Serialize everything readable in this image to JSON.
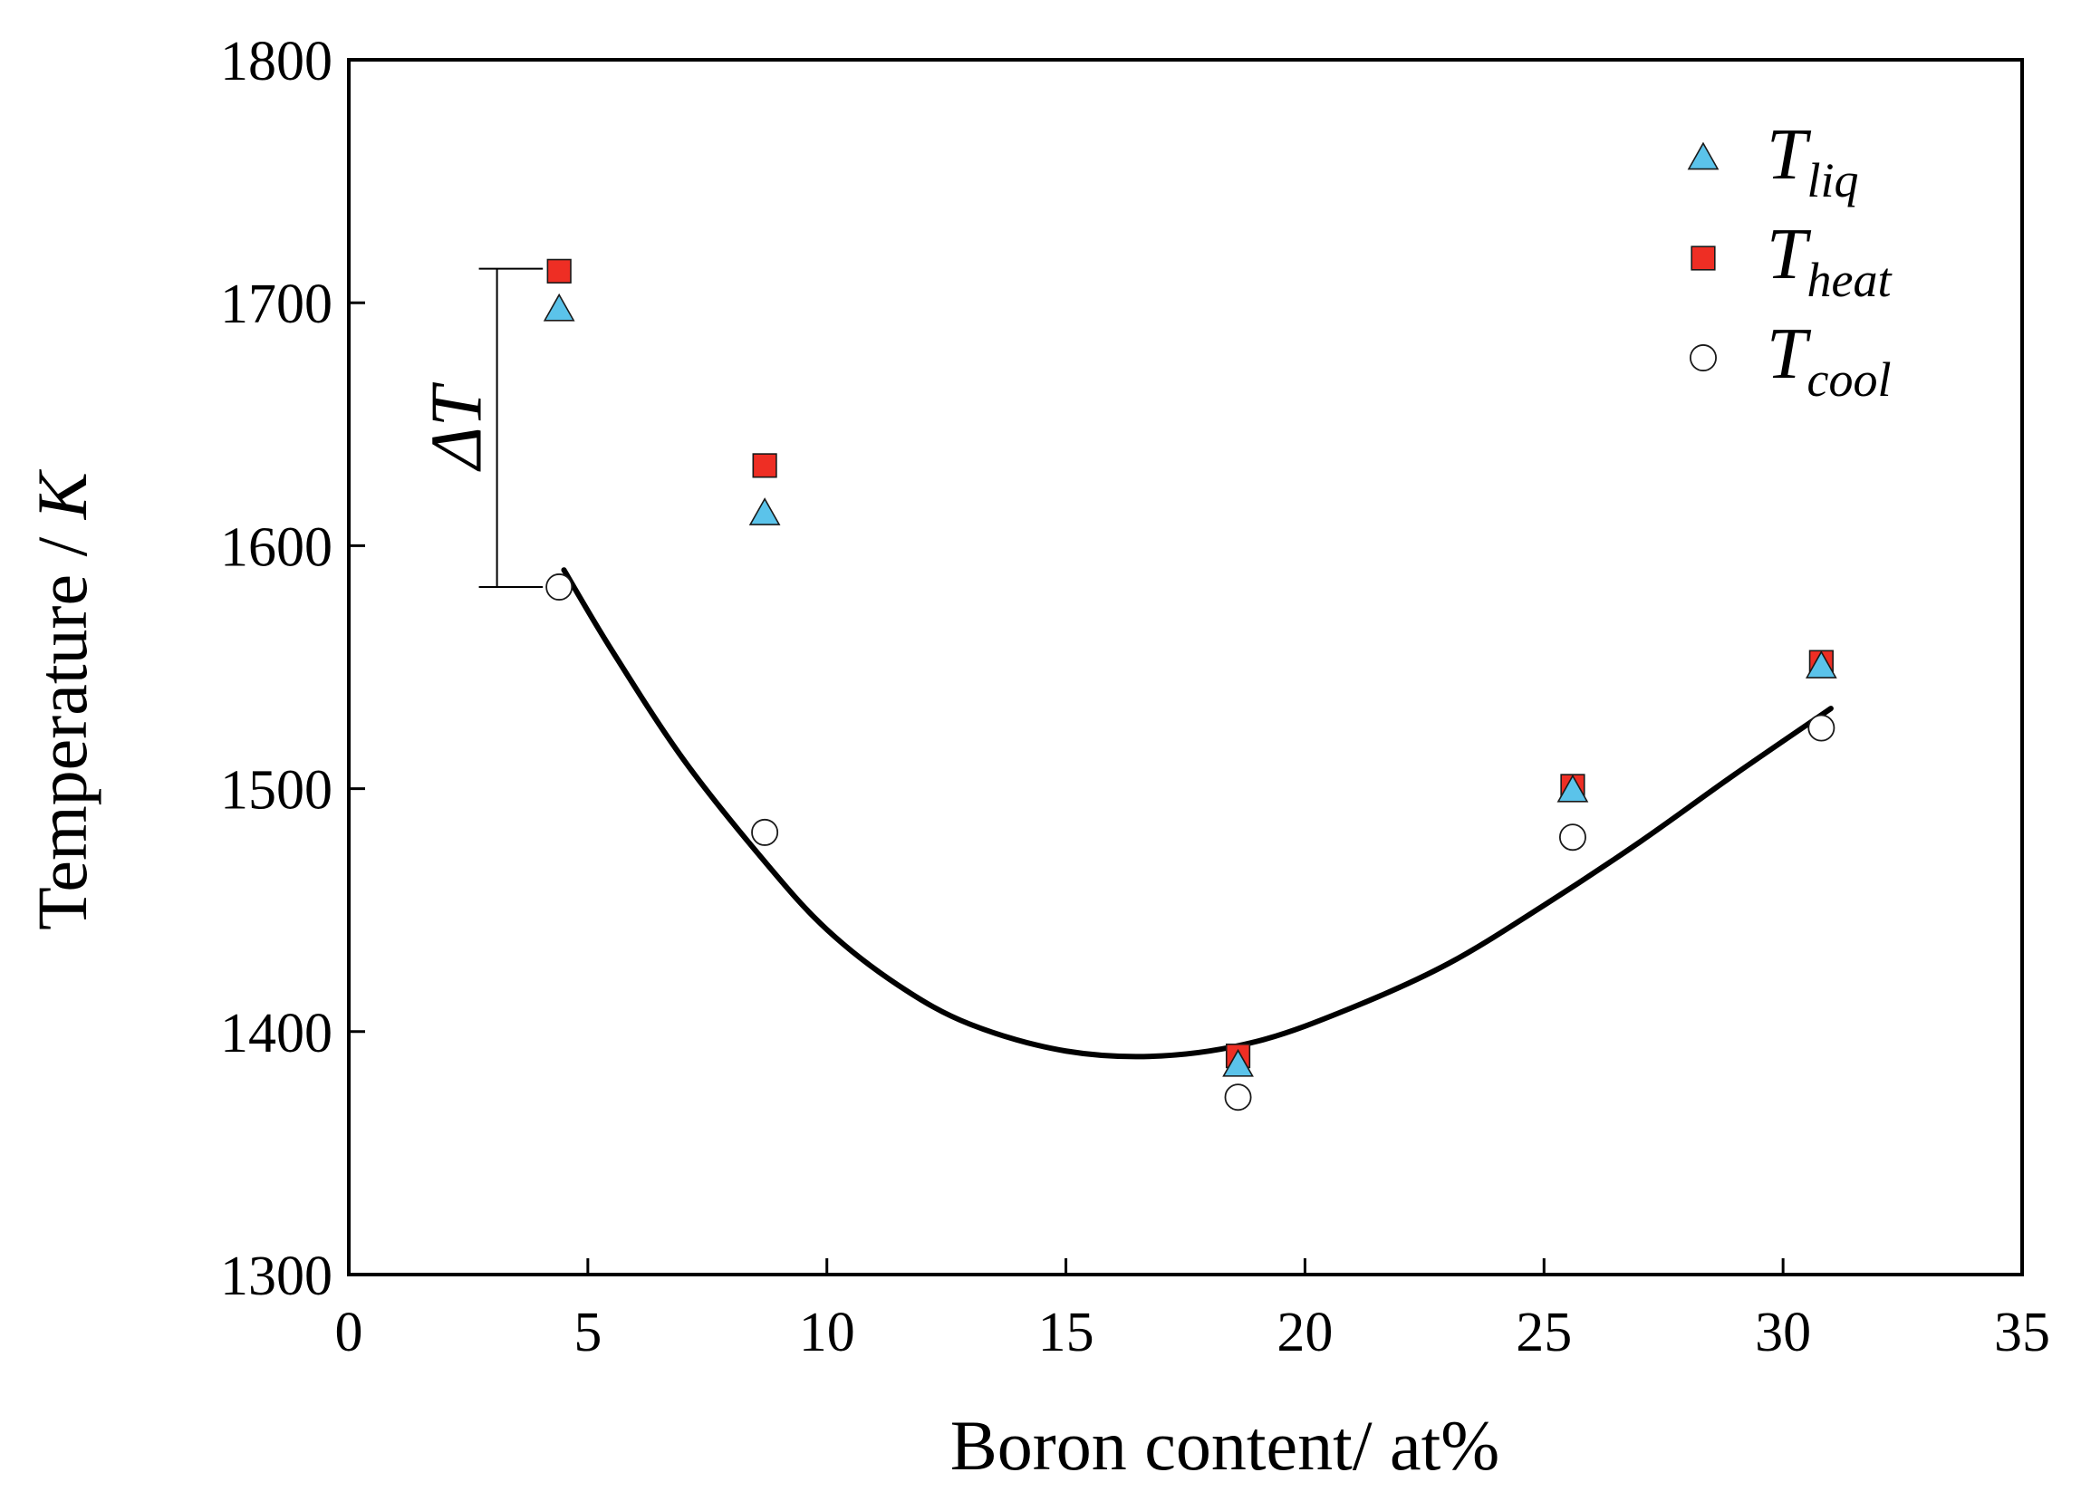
{
  "chart_data": {
    "type": "scatter",
    "xlabel": "Boron content/ at%",
    "ylabel_main": "Temperature / ",
    "ylabel_unit": "K",
    "xlim": [
      0,
      35
    ],
    "ylim": [
      1300,
      1800
    ],
    "x_ticks": [
      0,
      5,
      10,
      15,
      20,
      25,
      30,
      35
    ],
    "y_ticks": [
      1300,
      1400,
      1500,
      1600,
      1700,
      1800
    ],
    "grid": false,
    "legend_position": "top-right",
    "series": [
      {
        "name": "T",
        "subscript": "liq",
        "marker": "triangle",
        "color": "#5bc3ea",
        "points": [
          [
            4.4,
            1697
          ],
          [
            8.7,
            1613
          ],
          [
            18.6,
            1386
          ],
          [
            25.6,
            1499
          ],
          [
            30.8,
            1550
          ]
        ]
      },
      {
        "name": "T",
        "subscript": "heat",
        "marker": "square",
        "color": "#ee2e24",
        "points": [
          [
            4.4,
            1713
          ],
          [
            8.7,
            1633
          ],
          [
            18.6,
            1390
          ],
          [
            25.6,
            1501
          ],
          [
            30.8,
            1552
          ]
        ]
      },
      {
        "name": "T",
        "subscript": "cool",
        "marker": "circle",
        "color": "#ffffff",
        "points": [
          [
            4.4,
            1583
          ],
          [
            8.7,
            1482
          ],
          [
            18.6,
            1373
          ],
          [
            25.6,
            1480
          ],
          [
            30.8,
            1525
          ]
        ]
      }
    ],
    "fit_curve": {
      "color": "#000000",
      "points": [
        [
          4.5,
          1590
        ],
        [
          5.5,
          1557
        ],
        [
          7,
          1512
        ],
        [
          8.7,
          1470
        ],
        [
          10,
          1442
        ],
        [
          11.5,
          1419
        ],
        [
          13,
          1403
        ],
        [
          15,
          1392
        ],
        [
          17,
          1390
        ],
        [
          19,
          1396
        ],
        [
          21,
          1410
        ],
        [
          23,
          1428
        ],
        [
          25,
          1452
        ],
        [
          27,
          1478
        ],
        [
          29,
          1506
        ],
        [
          31,
          1533
        ]
      ]
    },
    "annotation": {
      "label": "ΔT",
      "x": 3.1,
      "y_top": 1714,
      "y_bottom": 1583
    }
  }
}
